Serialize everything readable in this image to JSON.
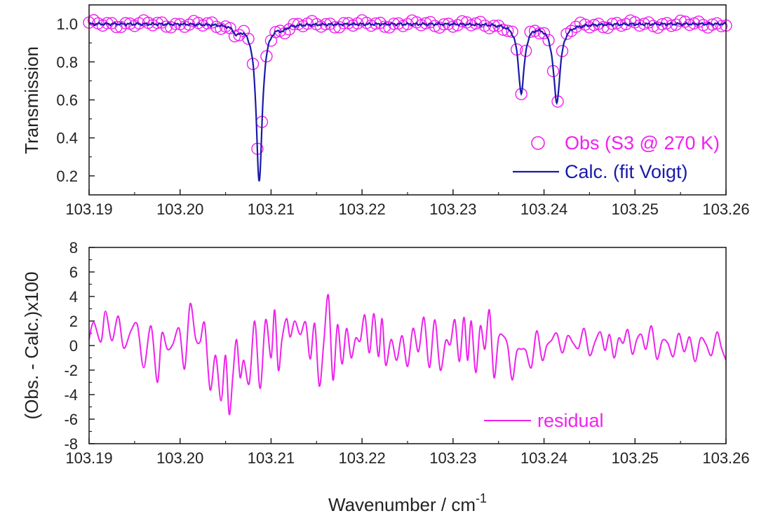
{
  "chart_data": [
    {
      "type": "scatter+line",
      "panel": "top",
      "ylabel": "Transmission",
      "xlim": [
        103.19,
        103.26
      ],
      "ylim": [
        0.1,
        1.1
      ],
      "x_ticks": [
        "103.19",
        "103.20",
        "103.21",
        "103.22",
        "103.23",
        "103.24",
        "103.25",
        "103.26"
      ],
      "y_ticks": [
        "0.2",
        "0.4",
        "0.6",
        "0.8",
        "1.0"
      ],
      "legend_position": "bottom-right",
      "colors": {
        "obs": "#ee22ee",
        "calc": "#1a1aaa"
      },
      "series": [
        {
          "name": "Obs (S3 @ 270 K)",
          "kind": "open-circle-markers",
          "marker_step": 0.0005
        },
        {
          "name": "Calc. (fit Voigt)",
          "kind": "line"
        }
      ],
      "model": {
        "baseline": 1.0,
        "absorption_lines": [
          {
            "center": 103.2087,
            "depth": 0.83,
            "width": 0.0004
          },
          {
            "center": 103.2375,
            "depth": 0.36,
            "width": 0.0004
          },
          {
            "center": 103.2414,
            "depth": 0.41,
            "width": 0.00045
          }
        ],
        "wing_features": [
          {
            "center": 103.2062,
            "depth": 0.04,
            "width": 0.0004
          },
          {
            "center": 103.2113,
            "depth": 0.02,
            "width": 0.0004
          }
        ]
      }
    },
    {
      "type": "line",
      "panel": "bottom",
      "xlabel": "Wavenumber / cm",
      "xlabel_superscript": "-1",
      "ylabel": "(Obs. - Calc.)x100",
      "xlim": [
        103.19,
        103.26
      ],
      "ylim": [
        -8,
        8
      ],
      "x_ticks": [
        "103.19",
        "103.20",
        "103.21",
        "103.22",
        "103.23",
        "103.24",
        "103.25",
        "103.26"
      ],
      "y_ticks": [
        "-8",
        "-6",
        "-4",
        "-2",
        "0",
        "2",
        "4",
        "6",
        "8"
      ],
      "legend_position": "bottom-center",
      "colors": {
        "residual": "#ee22ee"
      },
      "series": [
        {
          "name": "residual",
          "x": [
            103.19,
            103.1905,
            103.1913,
            103.1918,
            103.1925,
            103.1932,
            103.1938,
            103.1946,
            103.1953,
            103.196,
            103.1968,
            103.1975,
            103.198,
            103.1986,
            103.1992,
            103.1999,
            103.2005,
            103.2011,
            103.2017,
            103.2022,
            103.2027,
            103.2033,
            103.2039,
            103.2045,
            103.205,
            103.2054,
            103.2058,
            103.2062,
            103.2066,
            103.207,
            103.2076,
            103.2082,
            103.2088,
            103.2094,
            103.21,
            103.2104,
            103.2108,
            103.2112,
            103.2117,
            103.2121,
            103.2126,
            103.2132,
            103.2138,
            103.2143,
            103.2148,
            103.2153,
            103.2158,
            103.2163,
            103.2168,
            103.2173,
            103.2178,
            103.2183,
            103.2188,
            103.2193,
            103.2198,
            103.2203,
            103.2208,
            103.2213,
            103.2218,
            103.2222,
            103.2226,
            103.2232,
            103.2238,
            103.2244,
            103.225,
            103.2256,
            103.2262,
            103.2268,
            103.2274,
            103.228,
            103.2286,
            103.2292,
            103.2297,
            103.2302,
            103.2307,
            103.2312,
            103.2316,
            103.232,
            103.2325,
            103.233,
            103.2335,
            103.234,
            103.2345,
            103.235,
            103.2355,
            103.236,
            103.2365,
            103.237,
            103.2375,
            103.238,
            103.2386,
            103.2392,
            103.2398,
            103.2403,
            103.2408,
            103.2414,
            103.242,
            103.2426,
            103.2432,
            103.2438,
            103.2444,
            103.245,
            103.2456,
            103.2462,
            103.2467,
            103.2472,
            103.2477,
            103.2482,
            103.2487,
            103.2492,
            103.2497,
            103.2502,
            103.2507,
            103.2512,
            103.2518,
            103.2524,
            103.253,
            103.2536,
            103.2542,
            103.2548,
            103.2554,
            103.256,
            103.2566,
            103.2572,
            103.2578,
            103.2584,
            103.259,
            103.2595,
            103.26
          ],
          "y": [
            0.5,
            1.9,
            0.3,
            2.8,
            0.4,
            2.4,
            -0.2,
            1.2,
            1.7,
            -1.8,
            1.6,
            -3.0,
            1.0,
            -0.3,
            0.1,
            1.4,
            -1.9,
            3.4,
            0.6,
            0.3,
            1.8,
            -3.6,
            -0.8,
            -4.5,
            -0.8,
            -5.6,
            -2.5,
            0.5,
            -2.6,
            -1.2,
            -3.1,
            2.0,
            -3.5,
            2.1,
            -1.0,
            2.9,
            -2.0,
            0.5,
            2.2,
            0.7,
            2.0,
            0.9,
            1.9,
            -1.1,
            1.8,
            -3.3,
            0.3,
            4.1,
            -2.8,
            1.7,
            -1.5,
            1.4,
            -1.0,
            0.6,
            0.4,
            2.5,
            -0.6,
            2.6,
            -0.9,
            2.2,
            -1.6,
            0.5,
            -1.2,
            0.8,
            -1.7,
            1.4,
            -0.5,
            2.3,
            -1.8,
            2.1,
            -2.0,
            0.4,
            0.1,
            2.1,
            -1.3,
            2.3,
            -1.2,
            2.0,
            -2.2,
            1.6,
            -0.3,
            2.9,
            -2.6,
            0.6,
            0.8,
            0.0,
            -2.8,
            -0.5,
            -0.3,
            -0.4,
            -1.8,
            1.2,
            -1.2,
            0.0,
            0.4,
            1.0,
            -0.6,
            0.8,
            0.2,
            -0.2,
            1.4,
            -0.8,
            0.3,
            1.1,
            -0.4,
            0.9,
            -1.0,
            0.6,
            0.2,
            1.3,
            -0.7,
            0.5,
            0.9,
            -0.3,
            1.6,
            -1.1,
            0.4,
            0.2,
            -0.9,
            1.0,
            -0.5,
            0.7,
            -1.3,
            0.6,
            0.1,
            -0.8,
            1.1,
            -0.2,
            -1.2
          ]
        }
      ]
    }
  ]
}
